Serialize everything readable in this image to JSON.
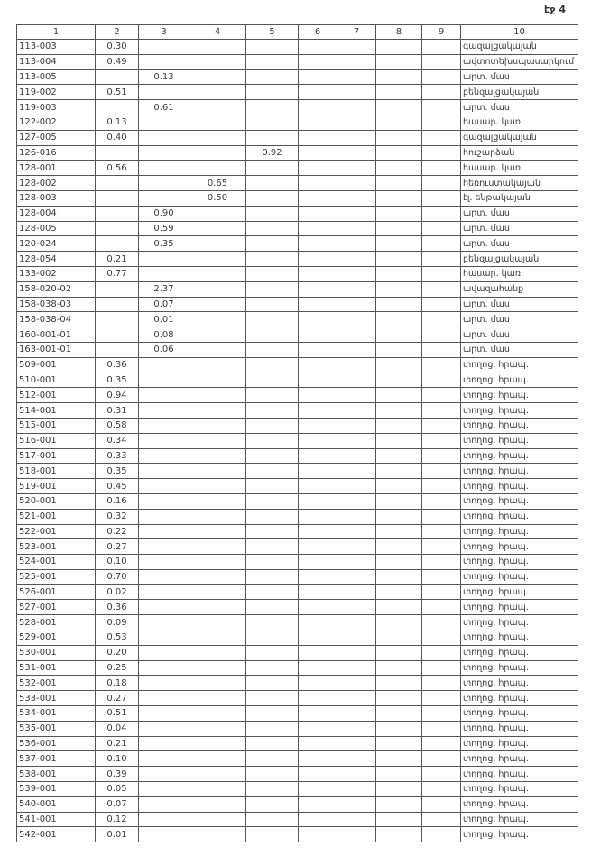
{
  "page_label": "էջ 4",
  "headers": [
    "1",
    "2",
    "3",
    "4",
    "5",
    "6",
    "7",
    "8",
    "9",
    "10"
  ],
  "rows": [
    [
      "113-003",
      "0.30",
      "",
      "",
      "",
      "",
      "",
      "",
      "",
      "գազալցակայան"
    ],
    [
      "113-004",
      "0.49",
      "",
      "",
      "",
      "",
      "",
      "",
      "",
      "ավտոտեխսպասարկում"
    ],
    [
      "113-005",
      "",
      "0.13",
      "",
      "",
      "",
      "",
      "",
      "",
      "արտ. մաս"
    ],
    [
      "119-002",
      "0.51",
      "",
      "",
      "",
      "",
      "",
      "",
      "",
      "բենզալցակայան"
    ],
    [
      "119-003",
      "",
      "0.61",
      "",
      "",
      "",
      "",
      "",
      "",
      "արտ. մաս"
    ],
    [
      "122-002",
      "0.13",
      "",
      "",
      "",
      "",
      "",
      "",
      "",
      "հասար. կառ."
    ],
    [
      "127-005",
      "0.40",
      "",
      "",
      "",
      "",
      "",
      "",
      "",
      "գազալցակայան"
    ],
    [
      "126-016",
      "",
      "",
      "",
      "0.92",
      "",
      "",
      "",
      "",
      "հուշարձան"
    ],
    [
      "128-001",
      "0.56",
      "",
      "",
      "",
      "",
      "",
      "",
      "",
      "հասար. կառ."
    ],
    [
      "128-002",
      "",
      "",
      "0.65",
      "",
      "",
      "",
      "",
      "",
      "հեռուստակայան"
    ],
    [
      "128-003",
      "",
      "",
      "0.50",
      "",
      "",
      "",
      "",
      "",
      "էլ. ենթակայան"
    ],
    [
      "128-004",
      "",
      "0.90",
      "",
      "",
      "",
      "",
      "",
      "",
      "արտ. մաս"
    ],
    [
      "128-005",
      "",
      "0.59",
      "",
      "",
      "",
      "",
      "",
      "",
      "արտ. մաս"
    ],
    [
      "120-024",
      "",
      "0.35",
      "",
      "",
      "",
      "",
      "",
      "",
      "արտ. մաս"
    ],
    [
      "128-054",
      "0.21",
      "",
      "",
      "",
      "",
      "",
      "",
      "",
      "բենզալցակայան"
    ],
    [
      "133-002",
      "0.77",
      "",
      "",
      "",
      "",
      "",
      "",
      "",
      "հասար. կառ."
    ],
    [
      "158-020-02",
      "",
      "2.37",
      "",
      "",
      "",
      "",
      "",
      "",
      "ավազահանք"
    ],
    [
      "158-038-03",
      "",
      "0.07",
      "",
      "",
      "",
      "",
      "",
      "",
      "արտ. մաս"
    ],
    [
      "158-038-04",
      "",
      "0.01",
      "",
      "",
      "",
      "",
      "",
      "",
      "արտ. մաս"
    ],
    [
      "160-001-01",
      "",
      "0.08",
      "",
      "",
      "",
      "",
      "",
      "",
      "արտ. մաս"
    ],
    [
      "163-001-01",
      "",
      "0.06",
      "",
      "",
      "",
      "",
      "",
      "",
      "արտ. մաս"
    ],
    [
      "509-001",
      "0.36",
      "",
      "",
      "",
      "",
      "",
      "",
      "",
      "փողոց. հրապ."
    ],
    [
      "510-001",
      "0.35",
      "",
      "",
      "",
      "",
      "",
      "",
      "",
      "փողոց. հրապ."
    ],
    [
      "512-001",
      "0.94",
      "",
      "",
      "",
      "",
      "",
      "",
      "",
      "փողոց. հրապ."
    ],
    [
      "514-001",
      "0.31",
      "",
      "",
      "",
      "",
      "",
      "",
      "",
      "փողոց. հրապ."
    ],
    [
      "515-001",
      "0.58",
      "",
      "",
      "",
      "",
      "",
      "",
      "",
      "փողոց. հրապ."
    ],
    [
      "516-001",
      "0.34",
      "",
      "",
      "",
      "",
      "",
      "",
      "",
      "փողոց. հրապ."
    ],
    [
      "517-001",
      "0.33",
      "",
      "",
      "",
      "",
      "",
      "",
      "",
      "փողոց. հրապ."
    ],
    [
      "518-001",
      "0.35",
      "",
      "",
      "",
      "",
      "",
      "",
      "",
      "փողոց. հրապ."
    ],
    [
      "519-001",
      "0.45",
      "",
      "",
      "",
      "",
      "",
      "",
      "",
      "փողոց. հրապ."
    ],
    [
      "520-001",
      "0.16",
      "",
      "",
      "",
      "",
      "",
      "",
      "",
      "փողոց. հրապ."
    ],
    [
      "521-001",
      "0.32",
      "",
      "",
      "",
      "",
      "",
      "",
      "",
      "փողոց. հրապ."
    ],
    [
      "522-001",
      "0.22",
      "",
      "",
      "",
      "",
      "",
      "",
      "",
      "փողոց. հրապ."
    ],
    [
      "523-001",
      "0.27",
      "",
      "",
      "",
      "",
      "",
      "",
      "",
      "փողոց. հրապ."
    ],
    [
      "524-001",
      "0.10",
      "",
      "",
      "",
      "",
      "",
      "",
      "",
      "փողոց. հրապ."
    ],
    [
      "525-001",
      "0.70",
      "",
      "",
      "",
      "",
      "",
      "",
      "",
      "փողոց. հրապ."
    ],
    [
      "526-001",
      "0.02",
      "",
      "",
      "",
      "",
      "",
      "",
      "",
      "փողոց. հրապ."
    ],
    [
      "527-001",
      "0.36",
      "",
      "",
      "",
      "",
      "",
      "",
      "",
      "փողոց. հրապ."
    ],
    [
      "528-001",
      "0.09",
      "",
      "",
      "",
      "",
      "",
      "",
      "",
      "փողոց. հրապ."
    ],
    [
      "529-001",
      "0.53",
      "",
      "",
      "",
      "",
      "",
      "",
      "",
      "փողոց. հրապ."
    ],
    [
      "530-001",
      "0.20",
      "",
      "",
      "",
      "",
      "",
      "",
      "",
      "փողոց. հրապ."
    ],
    [
      "531-001",
      "0.25",
      "",
      "",
      "",
      "",
      "",
      "",
      "",
      "փողոց. հրապ."
    ],
    [
      "532-001",
      "0.18",
      "",
      "",
      "",
      "",
      "",
      "",
      "",
      "փողոց. հրապ."
    ],
    [
      "533-001",
      "0.27",
      "",
      "",
      "",
      "",
      "",
      "",
      "",
      "փողոց. հրապ."
    ],
    [
      "534-001",
      "0.51",
      "",
      "",
      "",
      "",
      "",
      "",
      "",
      "փողոց. հրապ."
    ],
    [
      "535-001",
      "0.04",
      "",
      "",
      "",
      "",
      "",
      "",
      "",
      "փողոց. հրապ."
    ],
    [
      "536-001",
      "0.21",
      "",
      "",
      "",
      "",
      "",
      "",
      "",
      "փողոց. հրապ."
    ],
    [
      "537-001",
      "0.10",
      "",
      "",
      "",
      "",
      "",
      "",
      "",
      "փողոց. հրապ."
    ],
    [
      "538-001",
      "0.39",
      "",
      "",
      "",
      "",
      "",
      "",
      "",
      "փողոց. հրապ."
    ],
    [
      "539-001",
      "0.05",
      "",
      "",
      "",
      "",
      "",
      "",
      "",
      "փողոց. հրապ."
    ],
    [
      "540-001",
      "0.07",
      "",
      "",
      "",
      "",
      "",
      "",
      "",
      "փողոց. հրապ."
    ],
    [
      "541-001",
      "0.12",
      "",
      "",
      "",
      "",
      "",
      "",
      "",
      "փողոց. հրապ."
    ],
    [
      "542-001",
      "0.01",
      "",
      "",
      "",
      "",
      "",
      "",
      "",
      "փողոց. հրապ."
    ]
  ]
}
